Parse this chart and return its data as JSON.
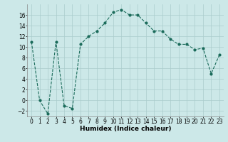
{
  "x": [
    0,
    1,
    2,
    3,
    4,
    5,
    6,
    7,
    8,
    9,
    10,
    11,
    12,
    13,
    14,
    15,
    16,
    17,
    18,
    19,
    20,
    21,
    22,
    23
  ],
  "y": [
    11,
    0,
    -2.5,
    11,
    -1,
    -1.5,
    10.5,
    12,
    13,
    14.5,
    16.5,
    17,
    16,
    16,
    14.5,
    13,
    13,
    11.5,
    10.5,
    10.5,
    9.5,
    9.8,
    5,
    8.5
  ],
  "line_color": "#1a6b5a",
  "marker": "o",
  "marker_size": 2,
  "bg_color": "#cce8e8",
  "grid_color": "#aacccc",
  "xlabel": "Humidex (Indice chaleur)",
  "ylim": [
    -3,
    18
  ],
  "xlim": [
    -0.5,
    23.5
  ],
  "yticks": [
    -2,
    0,
    2,
    4,
    6,
    8,
    10,
    12,
    14,
    16
  ],
  "xticks": [
    0,
    1,
    2,
    3,
    4,
    5,
    6,
    7,
    8,
    9,
    10,
    11,
    12,
    13,
    14,
    15,
    16,
    17,
    18,
    19,
    20,
    21,
    22,
    23
  ],
  "tick_fontsize": 5.5,
  "label_fontsize": 6.5
}
